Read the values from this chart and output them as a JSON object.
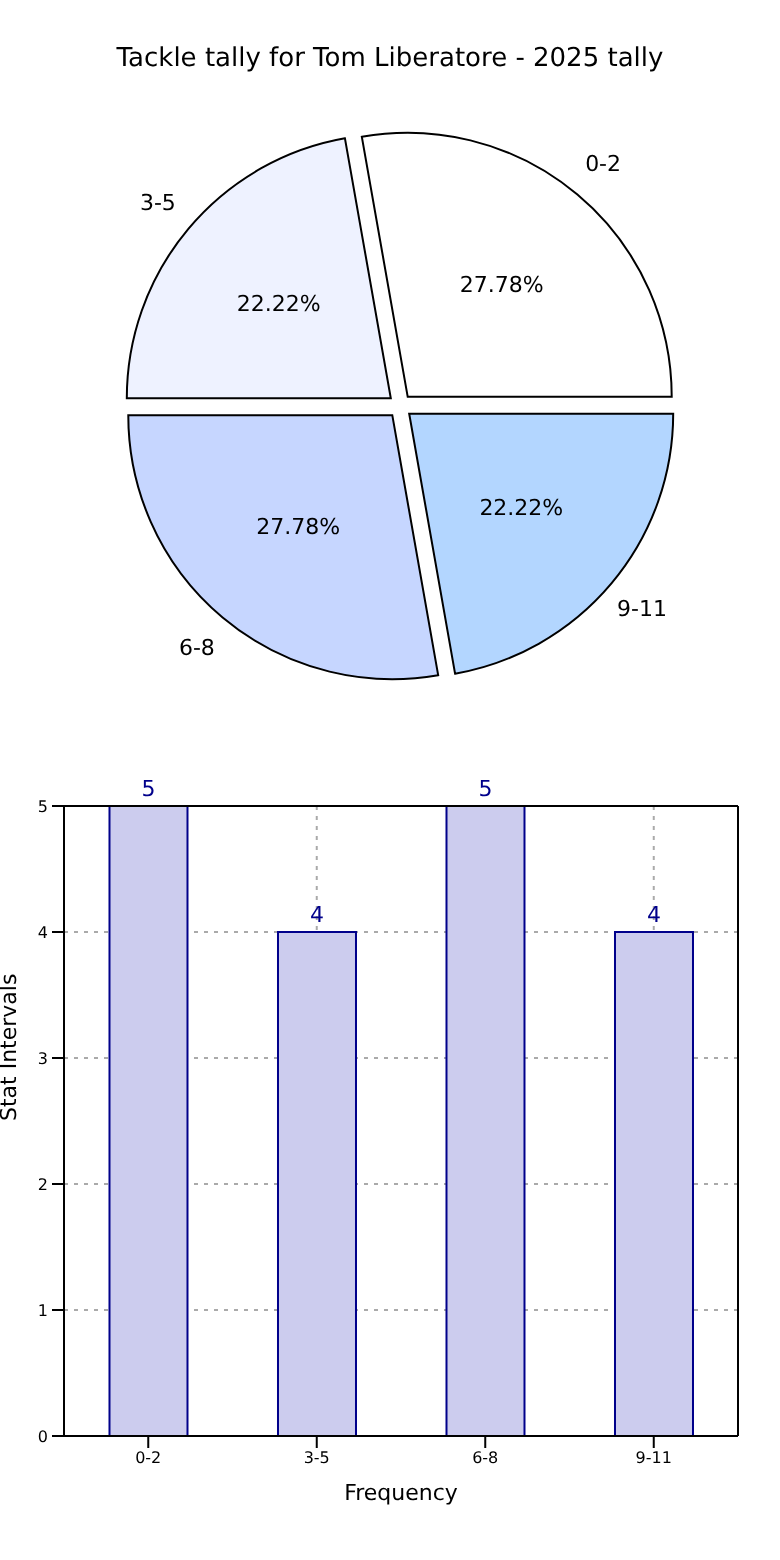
{
  "chart_data": [
    {
      "type": "pie",
      "title": "Tackle tally for Tom Liberatore - 2025 tally",
      "categories": [
        "0-2",
        "3-5",
        "6-8",
        "9-11"
      ],
      "values": [
        27.78,
        22.22,
        27.78,
        22.22
      ],
      "value_labels": [
        "27.78%",
        "22.22%",
        "27.78%",
        "22.22%"
      ],
      "colors": [
        "#ffffff",
        "#eef2ff",
        "#c6d6ff",
        "#b3d6ff"
      ]
    },
    {
      "type": "bar",
      "categories": [
        "0-2",
        "3-5",
        "6-8",
        "9-11"
      ],
      "values": [
        5,
        4,
        5,
        4
      ],
      "color": "#ccccee",
      "xlabel": "Frequency",
      "ylabel": "Stat Intervals",
      "ylim": [
        0,
        5
      ],
      "yticks": [
        0,
        1,
        2,
        3,
        4,
        5
      ],
      "grid": true,
      "data_labels": true
    }
  ]
}
